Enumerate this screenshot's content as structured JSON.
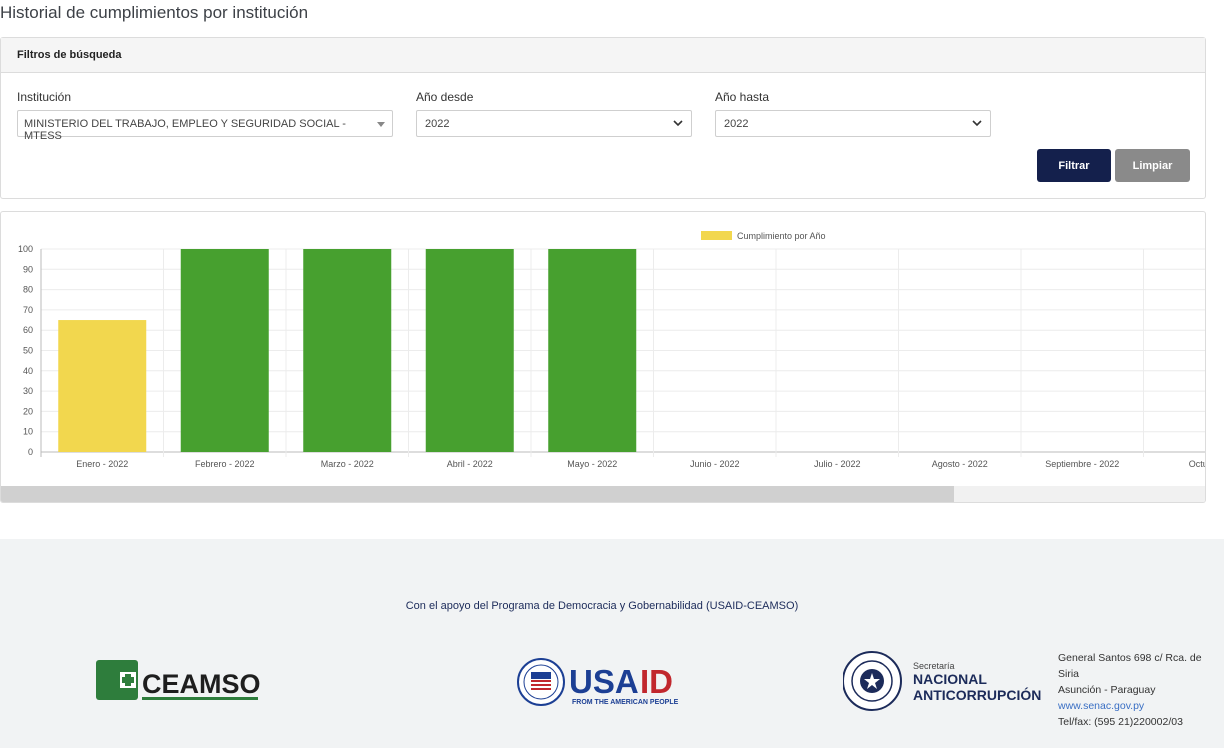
{
  "page": {
    "title": "Historial de cumplimientos por institución"
  },
  "filters": {
    "header": "Filtros de búsqueda",
    "institucion_label": "Institución",
    "institucion_value": "MINISTERIO DEL TRABAJO, EMPLEO Y SEGURIDAD SOCIAL - MTESS",
    "anio_desde_label": "Año desde",
    "anio_desde_value": "2022",
    "anio_hasta_label": "Año hasta",
    "anio_hasta_value": "2022",
    "filtrar_label": "Filtrar",
    "limpiar_label": "Limpiar"
  },
  "colors": {
    "yellow": "#f2d74e",
    "green": "#47a02f",
    "primary": "#14204c",
    "secondary": "#8a8a8a"
  },
  "chart_data": {
    "type": "bar",
    "legend": "Cumplimiento por Año",
    "legend_position": "top",
    "categories": [
      "Enero - 2022",
      "Febrero - 2022",
      "Marzo - 2022",
      "Abril - 2022",
      "Mayo - 2022",
      "Junio - 2022",
      "Julio - 2022",
      "Agosto - 2022",
      "Septiembre - 2022",
      "Octubre"
    ],
    "values": [
      65,
      100,
      100,
      100,
      100,
      null,
      null,
      null,
      null,
      null
    ],
    "bar_colors": [
      "#f2d74e",
      "#47a02f",
      "#47a02f",
      "#47a02f",
      "#47a02f"
    ],
    "ylim": [
      0,
      100
    ],
    "yticks": [
      0,
      10,
      20,
      30,
      40,
      50,
      60,
      70,
      80,
      90,
      100
    ],
    "grid": true
  },
  "footer": {
    "support_text": "Con el apoyo del Programa de Democracia y Gobernabilidad (USAID-CEAMSO)",
    "ceamso_logo": "CEAMSO",
    "usaid_logo": "USAID",
    "usaid_tagline": "FROM THE AMERICAN PEOPLE",
    "senac_small": "Secretaría",
    "senac_line1": "NACIONAL",
    "senac_line2": "ANTICORRUPCIÓN",
    "address_line1": "General Santos 698 c/ Rca. de Siria",
    "address_line2": "Asunción - Paraguay",
    "website": "www.senac.gov.py",
    "phone": "Tel/fax: (595 21)220002/03"
  }
}
